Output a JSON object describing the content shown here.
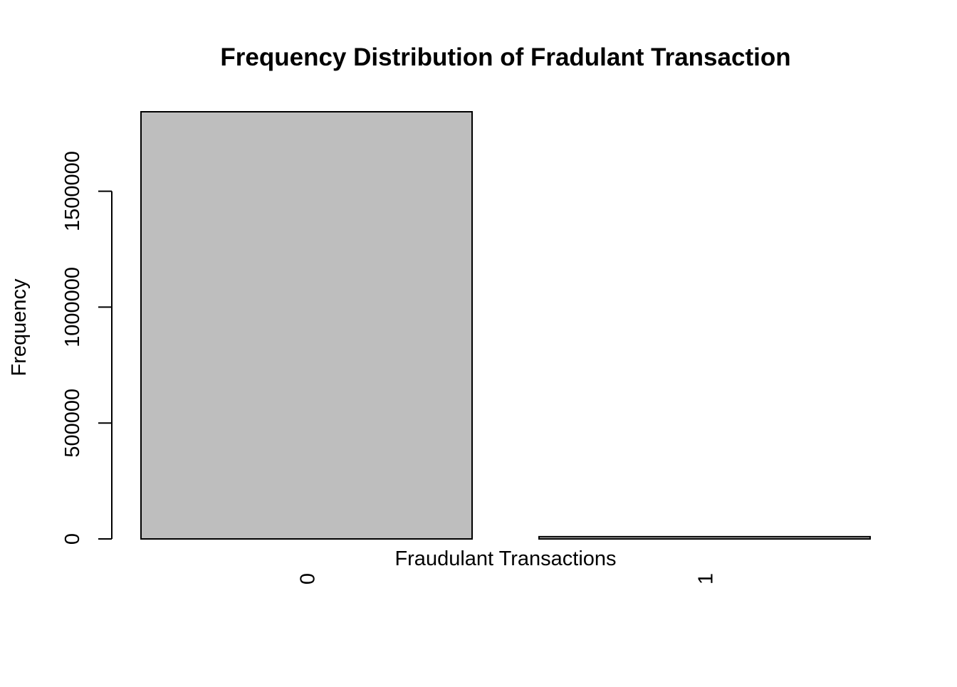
{
  "chart_data": {
    "type": "bar",
    "title": "Frequency Distribution of Fradulant Transaction",
    "xlabel": "Fraudulant Transactions",
    "ylabel": "Frequency",
    "categories": [
      "0",
      "1"
    ],
    "values": [
      1842743,
      9651
    ],
    "ylim": [
      0,
      1842743
    ],
    "yticks": [
      0,
      500000,
      1000000,
      1500000
    ],
    "ytick_labels": [
      "0",
      "500000",
      "1000000",
      "1500000"
    ],
    "bar_color": "#bebebe",
    "grid": false,
    "legend": "none"
  }
}
